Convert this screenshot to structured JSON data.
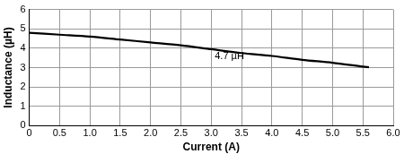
{
  "chart_data": {
    "type": "line",
    "x_label": "Current (A)",
    "y_label": "Inductance (µH)",
    "series": [
      {
        "name": "4.7 µH",
        "color": "#000000",
        "x": [
          0,
          0.5,
          1.0,
          1.5,
          2.0,
          2.5,
          3.0,
          3.5,
          4.0,
          4.5,
          5.0,
          5.5,
          5.6
        ],
        "values": [
          4.8,
          4.7,
          4.6,
          4.45,
          4.3,
          4.15,
          3.95,
          3.75,
          3.6,
          3.4,
          3.25,
          3.05,
          3.02
        ]
      }
    ],
    "annotations": [
      {
        "text": "4.7 µH",
        "x": 3.3,
        "y": 3.6
      }
    ],
    "xlim": [
      0,
      6
    ],
    "xticks": [
      0,
      0.5,
      {
        "value": 1,
        "label": "1.0"
      },
      1.5,
      {
        "value": 2,
        "label": "2.0"
      },
      2.5,
      {
        "value": 3,
        "label": "3.0"
      },
      3.5,
      {
        "value": 4,
        "label": "4.0"
      },
      4.5,
      {
        "value": 5,
        "label": "5.0"
      },
      5.5,
      {
        "value": 6,
        "label": "6.0"
      }
    ],
    "ylim": [
      0,
      6
    ],
    "yticks": [
      0,
      1,
      2,
      3,
      4,
      5,
      6
    ],
    "grid": true
  }
}
